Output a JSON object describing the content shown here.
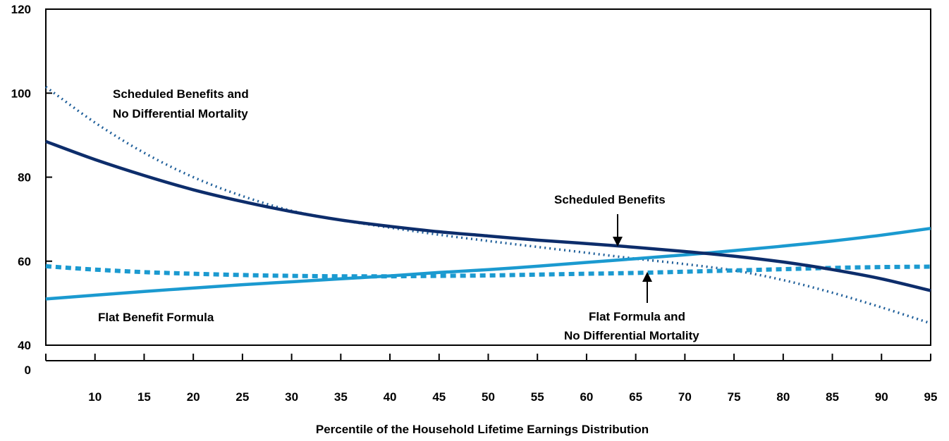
{
  "chart_data": {
    "type": "line",
    "xlabel": "Percentile of the Household Lifetime Earnings Distribution",
    "ylabel": "",
    "xlim": [
      5,
      95
    ],
    "ylim": [
      40,
      120
    ],
    "y_axis_break": true,
    "y_ticks": [
      "120",
      "100",
      "80",
      "60",
      "40",
      "0"
    ],
    "x_ticks": [
      "10",
      "15",
      "20",
      "25",
      "30",
      "35",
      "40",
      "45",
      "50",
      "55",
      "60",
      "65",
      "70",
      "75",
      "80",
      "85",
      "90",
      "95"
    ],
    "grid": false,
    "x": [
      5,
      10,
      15,
      20,
      25,
      30,
      35,
      40,
      45,
      50,
      55,
      60,
      65,
      70,
      75,
      80,
      85,
      90,
      95
    ],
    "series": [
      {
        "key": "scheduled",
        "style": "solid",
        "color": "#0d2d6b",
        "values": [
          88.5,
          84.2,
          80.4,
          77.0,
          74.2,
          71.8,
          69.8,
          68.3,
          67.0,
          66.0,
          65.0,
          64.2,
          63.3,
          62.3,
          61.2,
          59.8,
          58.0,
          55.8,
          53.0
        ]
      },
      {
        "key": "scheduled_no_diff_mortality",
        "style": "dotted",
        "color": "#1f5f9a",
        "values": [
          101.5,
          93.0,
          85.8,
          80.0,
          75.5,
          72.0,
          69.8,
          68.0,
          66.3,
          64.8,
          63.4,
          62.0,
          60.6,
          59.3,
          57.8,
          55.5,
          52.5,
          49.0,
          45.2
        ]
      },
      {
        "key": "flat",
        "style": "solid",
        "color": "#1b9ad0",
        "values": [
          51.0,
          51.9,
          52.8,
          53.6,
          54.4,
          55.1,
          55.8,
          56.5,
          57.3,
          58.0,
          58.8,
          59.7,
          60.6,
          61.5,
          62.5,
          63.6,
          64.8,
          66.2,
          67.8
        ]
      },
      {
        "key": "flat_no_diff_mortality",
        "style": "dashed",
        "color": "#1b9ad0",
        "values": [
          58.8,
          58.0,
          57.4,
          57.0,
          56.7,
          56.5,
          56.4,
          56.4,
          56.5,
          56.6,
          56.8,
          57.0,
          57.2,
          57.5,
          57.8,
          58.1,
          58.4,
          58.6,
          58.7
        ]
      }
    ],
    "annotations": {
      "scheduled_no_diff_line1": "Scheduled Benefits and",
      "scheduled_no_diff_line2": "No Differential Mortality",
      "scheduled": "Scheduled Benefits",
      "flat": "Flat Benefit Formula",
      "flat_no_diff_line1": "Flat Formula and",
      "flat_no_diff_line2": "No Differential Mortality"
    }
  }
}
